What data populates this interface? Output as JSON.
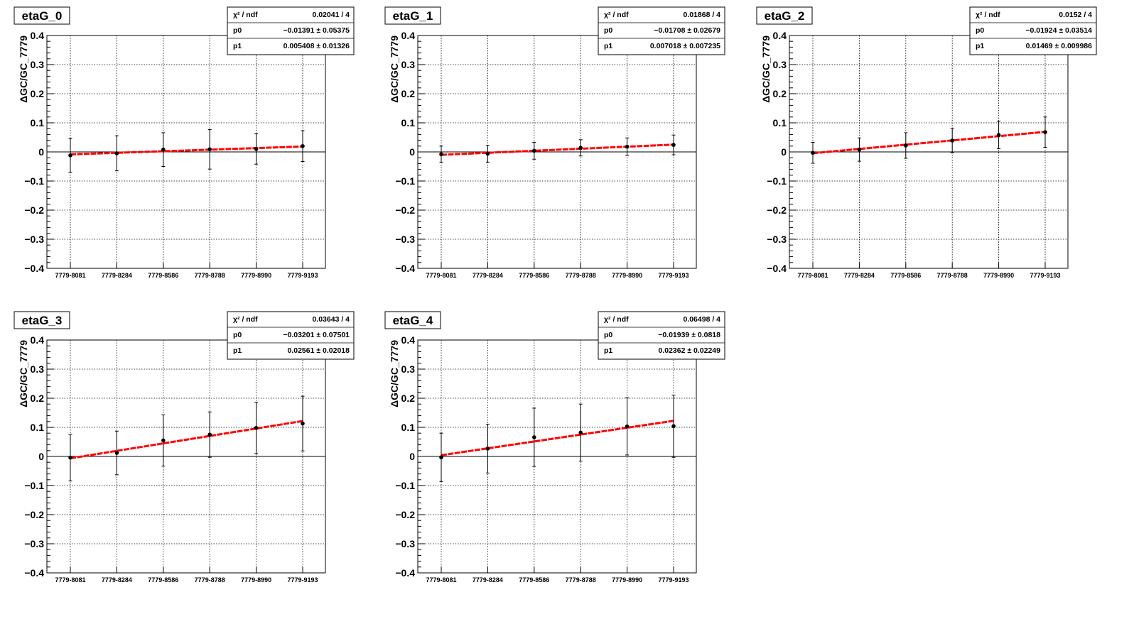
{
  "chart_data": [
    {
      "type": "scatter",
      "title": "etaG_0",
      "ylabel": "ΔGC/GC_7779",
      "xlabel": "",
      "categories": [
        "7779-8081",
        "7779-8284",
        "7779-8586",
        "7779-8788",
        "7779-8990",
        "7779-9193"
      ],
      "ylim": [
        -0.4,
        0.4
      ],
      "yticks": [
        "−0.4",
        "−0.3",
        "−0.2",
        "−0.1",
        "0",
        "0.1",
        "0.2",
        "0.3",
        "0.4"
      ],
      "grid": true,
      "values": [
        -0.012,
        -0.005,
        0.008,
        0.009,
        0.01,
        0.02
      ],
      "errors": [
        0.058,
        0.06,
        0.058,
        0.068,
        0.052,
        0.053
      ],
      "fit": {
        "p0": -0.01391,
        "p1": 0.005408,
        "color": "#ff0000"
      },
      "stats": {
        "chi2_label": "χ² / ndf",
        "chi2_value": "0.02041 / 4",
        "p0_label": "p0",
        "p0_value": "−0.01391 ± 0.05375",
        "p1_label": "p1",
        "p1_value": "0.005408 ± 0.01326"
      }
    },
    {
      "type": "scatter",
      "title": "etaG_1",
      "ylabel": "ΔGC/GC_7779",
      "xlabel": "",
      "categories": [
        "7779-8081",
        "7779-8284",
        "7779-8586",
        "7779-8788",
        "7779-8990",
        "7779-9193"
      ],
      "ylim": [
        -0.4,
        0.4
      ],
      "yticks": [
        "−0.4",
        "−0.3",
        "−0.2",
        "−0.1",
        "0",
        "0.1",
        "0.2",
        "0.3",
        "0.4"
      ],
      "grid": true,
      "values": [
        -0.008,
        -0.006,
        0.004,
        0.014,
        0.018,
        0.024
      ],
      "errors": [
        0.028,
        0.029,
        0.029,
        0.028,
        0.03,
        0.034
      ],
      "fit": {
        "p0": -0.01708,
        "p1": 0.007018,
        "color": "#ff0000"
      },
      "stats": {
        "chi2_label": "χ² / ndf",
        "chi2_value": "0.01868 / 4",
        "p0_label": "p0",
        "p0_value": "−0.01708 ± 0.02679",
        "p1_label": "p1",
        "p1_value": "0.007018 ± 0.007235"
      }
    },
    {
      "type": "scatter",
      "title": "etaG_2",
      "ylabel": "ΔGC/GC_7779",
      "xlabel": "",
      "categories": [
        "7779-8081",
        "7779-8284",
        "7779-8586",
        "7779-8788",
        "7779-8990",
        "7779-9193"
      ],
      "ylim": [
        -0.4,
        0.4
      ],
      "yticks": [
        "−0.4",
        "−0.3",
        "−0.2",
        "−0.1",
        "0",
        "0.1",
        "0.2",
        "0.3",
        "0.4"
      ],
      "grid": true,
      "values": [
        -0.003,
        0.008,
        0.022,
        0.039,
        0.058,
        0.068
      ],
      "errors": [
        0.036,
        0.04,
        0.044,
        0.042,
        0.047,
        0.052
      ],
      "fit": {
        "p0": -0.01924,
        "p1": 0.01469,
        "color": "#ff0000"
      },
      "stats": {
        "chi2_label": "χ² / ndf",
        "chi2_value": "0.0152 / 4",
        "p0_label": "p0",
        "p0_value": "−0.01924 ± 0.03514",
        "p1_label": "p1",
        "p1_value": "0.01469 ± 0.009986"
      }
    },
    {
      "type": "scatter",
      "title": "etaG_3",
      "ylabel": "ΔGC/GC_7779",
      "xlabel": "",
      "categories": [
        "7779-8081",
        "7779-8284",
        "7779-8586",
        "7779-8788",
        "7779-8990",
        "7779-9193"
      ],
      "ylim": [
        -0.4,
        0.4
      ],
      "yticks": [
        "−0.4",
        "−0.3",
        "−0.2",
        "−0.1",
        "0",
        "0.1",
        "0.2",
        "0.3",
        "0.4"
      ],
      "grid": true,
      "values": [
        -0.004,
        0.012,
        0.055,
        0.075,
        0.098,
        0.113
      ],
      "errors": [
        0.08,
        0.075,
        0.088,
        0.078,
        0.088,
        0.094
      ],
      "fit": {
        "p0": -0.03201,
        "p1": 0.02561,
        "color": "#ff0000"
      },
      "stats": {
        "chi2_label": "χ² / ndf",
        "chi2_value": "0.03643 / 4",
        "p0_label": "p0",
        "p0_value": "−0.03201 ± 0.07501",
        "p1_label": "p1",
        "p1_value": "0.02561 ± 0.02018"
      }
    },
    {
      "type": "scatter",
      "title": "etaG_4",
      "ylabel": "ΔGC/GC_7779",
      "xlabel": "",
      "categories": [
        "7779-8081",
        "7779-8284",
        "7779-8586",
        "7779-8788",
        "7779-8990",
        "7779-9193"
      ],
      "ylim": [
        -0.4,
        0.4
      ],
      "yticks": [
        "−0.4",
        "−0.3",
        "−0.2",
        "−0.1",
        "0",
        "0.1",
        "0.2",
        "0.3",
        "0.4"
      ],
      "grid": true,
      "values": [
        -0.003,
        0.027,
        0.066,
        0.082,
        0.103,
        0.104
      ],
      "errors": [
        0.083,
        0.084,
        0.1,
        0.098,
        0.098,
        0.107
      ],
      "fit": {
        "p0": -0.01939,
        "p1": 0.02362,
        "color": "#ff0000"
      },
      "stats": {
        "chi2_label": "χ² / ndf",
        "chi2_value": "0.06498 / 4",
        "p0_label": "p0",
        "p0_value": "−0.01939 ± 0.0818",
        "p1_label": "p1",
        "p1_value": "0.02362 ± 0.02249"
      }
    }
  ]
}
